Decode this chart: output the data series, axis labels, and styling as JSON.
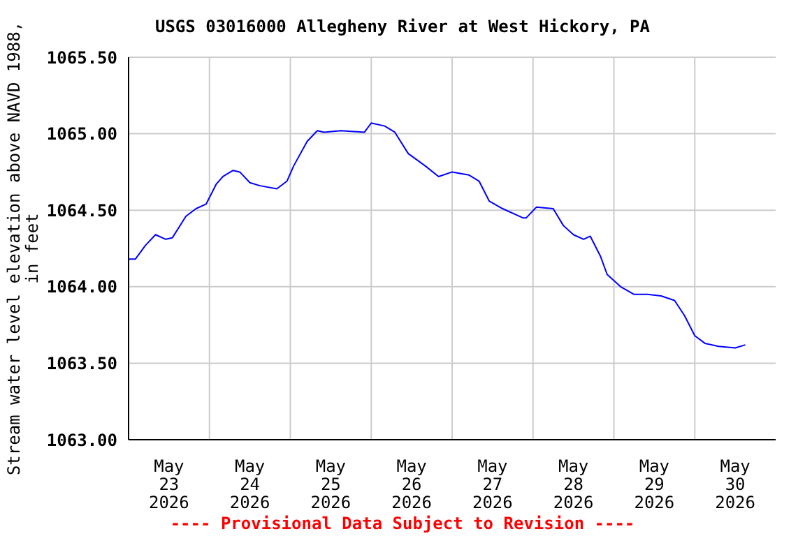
{
  "chart_data": {
    "type": "line",
    "title": "USGS 03016000 Allegheny River at West Hickory, PA",
    "ylabel": "Stream water level elevation above NAVD 1988, in feet",
    "annotations": [
      "---- Provisional Data Subject to Revision ----"
    ],
    "x": [
      "2026-05-23T00:00",
      "2026-05-23T02:00",
      "2026-05-23T05:00",
      "2026-05-23T08:00",
      "2026-05-23T11:00",
      "2026-05-23T13:00",
      "2026-05-23T17:00",
      "2026-05-23T20:00",
      "2026-05-23T23:00",
      "2026-05-24T02:00",
      "2026-05-24T04:00",
      "2026-05-24T07:00",
      "2026-05-24T09:00",
      "2026-05-24T12:00",
      "2026-05-24T15:00",
      "2026-05-24T20:00",
      "2026-05-24T23:00",
      "2026-05-25T01:00",
      "2026-05-25T05:00",
      "2026-05-25T08:00",
      "2026-05-25T10:00",
      "2026-05-25T15:00",
      "2026-05-25T22:00",
      "2026-05-26T00:00",
      "2026-05-26T04:00",
      "2026-05-26T07:00",
      "2026-05-26T11:00",
      "2026-05-26T16:00",
      "2026-05-26T20:00",
      "2026-05-27T00:00",
      "2026-05-27T05:00",
      "2026-05-27T08:00",
      "2026-05-27T11:00",
      "2026-05-27T15:00",
      "2026-05-27T21:00",
      "2026-05-27T22:00",
      "2026-05-28T01:00",
      "2026-05-28T06:00",
      "2026-05-28T09:00",
      "2026-05-28T12:00",
      "2026-05-28T15:00",
      "2026-05-28T17:00",
      "2026-05-28T20:00",
      "2026-05-28T22:00",
      "2026-05-29T02:00",
      "2026-05-29T06:00",
      "2026-05-29T10:00",
      "2026-05-29T14:00",
      "2026-05-29T18:00",
      "2026-05-29T21:00",
      "2026-05-30T00:00",
      "2026-05-30T03:00",
      "2026-05-30T07:00",
      "2026-05-30T12:00",
      "2026-05-30T15:00"
    ],
    "series": [
      {
        "color": "#0000ff",
        "values": [
          1064.18,
          1064.18,
          1064.27,
          1064.34,
          1064.31,
          1064.32,
          1064.46,
          1064.51,
          1064.54,
          1064.67,
          1064.72,
          1064.76,
          1064.75,
          1064.68,
          1064.66,
          1064.64,
          1064.69,
          1064.79,
          1064.95,
          1065.02,
          1065.01,
          1065.02,
          1065.01,
          1065.07,
          1065.05,
          1065.01,
          1064.87,
          1064.79,
          1064.72,
          1064.75,
          1064.73,
          1064.69,
          1064.56,
          1064.51,
          1064.45,
          1064.45,
          1064.52,
          1064.51,
          1064.4,
          1064.34,
          1064.31,
          1064.33,
          1064.2,
          1064.08,
          1064.0,
          1063.95,
          1063.95,
          1063.94,
          1063.91,
          1063.81,
          1063.68,
          1063.63,
          1063.61,
          1063.6,
          1063.62
        ]
      }
    ],
    "xlim": [
      "2026-05-23T00:00",
      "2026-05-31T00:00"
    ],
    "xticks": [
      {
        "value": "2026-05-23T12:00",
        "label": "May 23 2026"
      },
      {
        "value": "2026-05-24T00:00",
        "label": null
      },
      {
        "value": "2026-05-24T12:00",
        "label": "May 24 2026"
      },
      {
        "value": "2026-05-25T00:00",
        "label": null
      },
      {
        "value": "2026-05-25T12:00",
        "label": "May 25 2026"
      },
      {
        "value": "2026-05-26T00:00",
        "label": null
      },
      {
        "value": "2026-05-26T12:00",
        "label": "May 26 2026"
      },
      {
        "value": "2026-05-27T00:00",
        "label": null
      },
      {
        "value": "2026-05-27T12:00",
        "label": "May 27 2026"
      },
      {
        "value": "2026-05-28T00:00",
        "label": null
      },
      {
        "value": "2026-05-28T12:00",
        "label": "May 28 2026"
      },
      {
        "value": "2026-05-29T00:00",
        "label": null
      },
      {
        "value": "2026-05-29T12:00",
        "label": "May 29 2026"
      },
      {
        "value": "2026-05-30T00:00",
        "label": null
      },
      {
        "value": "2026-05-30T12:00",
        "label": "May 30 2026"
      }
    ],
    "ylim": [
      1063.0,
      1065.5
    ],
    "yticks": [
      {
        "value": 1063.0,
        "label": "1063.00"
      },
      {
        "value": 1063.5,
        "label": "1063.50"
      },
      {
        "value": 1064.0,
        "label": "1064.00"
      },
      {
        "value": 1064.5,
        "label": "1064.50"
      },
      {
        "value": 1065.0,
        "label": "1065.00"
      },
      {
        "value": 1065.5,
        "label": "1065.50"
      }
    ],
    "grid": true,
    "line_style": "solid",
    "marker": "none",
    "legend": false
  }
}
